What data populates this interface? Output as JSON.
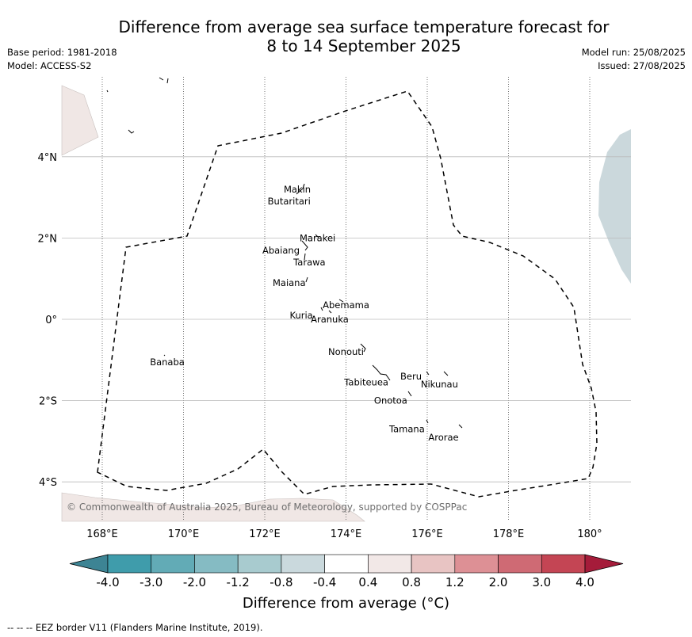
{
  "title_line1": "Difference from average sea surface temperature forecast for",
  "title_line2": "8 to 14 September 2025",
  "base_period": "Base period: 1981-2018",
  "model": "Model: ACCESS-S2",
  "model_run": "Model run: 25/08/2025",
  "issued": "Issued: 27/08/2025",
  "copyright": "© Commonwealth of Australia 2025, Bureau of Meteorology, supported by COSPPac",
  "footnote": "--  --  -- EEZ border V11 (Flanders Marine Institute, 2019).",
  "lon_ticks": [
    "168°E",
    "170°E",
    "172°E",
    "174°E",
    "176°E",
    "178°E",
    "180°"
  ],
  "lat_ticks": [
    "4°N",
    "2°N",
    "0°",
    "2°S",
    "4°S"
  ],
  "colorbar": {
    "label": "Difference from average (°C)",
    "ticks": [
      "-4.0",
      "-3.0",
      "-2.0",
      "-1.2",
      "-0.8",
      "-0.4",
      "0.4",
      "0.8",
      "1.2",
      "2.0",
      "3.0",
      "4.0"
    ],
    "colors": [
      "#3f9cab",
      "#62abb6",
      "#85bbc3",
      "#a8cbcf",
      "#cad9dd",
      "#ffffff",
      "#f2e8e7",
      "#e8c4c3",
      "#dd9095",
      "#cf6a74",
      "#c44554"
    ],
    "under_color": "#3d8494",
    "over_color": "#a51c3a"
  },
  "place_labels": [
    {
      "name": "Makin",
      "lon": 172.8,
      "lat": 3.2
    },
    {
      "name": "Butaritari",
      "lon": 172.6,
      "lat": 2.9
    },
    {
      "name": "Marakei",
      "lon": 173.3,
      "lat": 2.0
    },
    {
      "name": "Abaiang",
      "lon": 172.4,
      "lat": 1.7
    },
    {
      "name": "Tarawa",
      "lon": 173.1,
      "lat": 1.4
    },
    {
      "name": "Maiana",
      "lon": 172.6,
      "lat": 0.9
    },
    {
      "name": "Abemama",
      "lon": 174.0,
      "lat": 0.35
    },
    {
      "name": "Kuria",
      "lon": 172.9,
      "lat": 0.1
    },
    {
      "name": "Aranuka",
      "lon": 173.6,
      "lat": 0.0
    },
    {
      "name": "Nonouti",
      "lon": 174.0,
      "lat": -0.8
    },
    {
      "name": "Banaba",
      "lon": 169.6,
      "lat": -1.05
    },
    {
      "name": "Beru",
      "lon": 175.6,
      "lat": -1.4
    },
    {
      "name": "Tabiteuea",
      "lon": 174.5,
      "lat": -1.55
    },
    {
      "name": "Nikunau",
      "lon": 176.3,
      "lat": -1.6
    },
    {
      "name": "Onotoa",
      "lon": 175.1,
      "lat": -2.0
    },
    {
      "name": "Tamana",
      "lon": 175.5,
      "lat": -2.7
    },
    {
      "name": "Arorae",
      "lon": 176.4,
      "lat": -2.9
    }
  ]
}
